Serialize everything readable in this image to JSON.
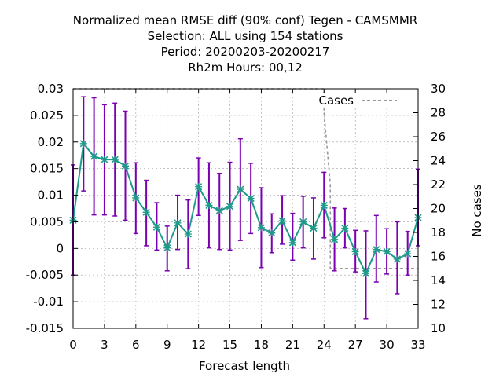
{
  "chart_data": {
    "type": "line",
    "title_lines": [
      "Normalized mean RMSE diff (90% conf) Tegen - CAMSMMR",
      "Selection: ALL using   154 stations",
      "Period: 20200203-20200217",
      "Rh2m   Hours:  00,12"
    ],
    "xlabel": "Forecast length",
    "ylabel": "",
    "y2label": "No cases",
    "xlim": [
      0,
      33
    ],
    "ylim": [
      -0.015,
      0.03
    ],
    "y2lim": [
      10,
      30
    ],
    "x_ticks": [
      0,
      3,
      6,
      9,
      12,
      15,
      18,
      21,
      24,
      27,
      30,
      33
    ],
    "y_ticks": [
      -0.015,
      -0.01,
      -0.005,
      0,
      0.005,
      0.01,
      0.015,
      0.02,
      0.025,
      0.03
    ],
    "y_tick_labels": [
      "-0.015",
      "-0.01",
      "-0.005",
      "0",
      "0.005",
      "0.01",
      "0.015",
      "0.02",
      "0.025",
      "0.03"
    ],
    "y2_ticks": [
      10,
      12,
      14,
      16,
      18,
      20,
      22,
      24,
      26,
      28,
      30
    ],
    "grid": true,
    "legend": {
      "position": "top-right",
      "entries": [
        "Cases"
      ]
    },
    "series": [
      {
        "kind": "errorbar-line",
        "color": "#1e9a8a",
        "errorbar_color": "#7a00b0",
        "x": [
          0,
          1,
          2,
          3,
          4,
          5,
          6,
          7,
          8,
          9,
          10,
          11,
          12,
          13,
          14,
          15,
          16,
          17,
          18,
          19,
          20,
          21,
          22,
          23,
          24,
          25,
          26,
          27,
          28,
          29,
          30,
          31,
          32,
          33
        ],
        "y": [
          0.0053,
          0.0197,
          0.0173,
          0.0167,
          0.0167,
          0.0155,
          0.0095,
          0.0068,
          0.004,
          0.0001,
          0.0048,
          0.0027,
          0.0116,
          0.0081,
          0.0071,
          0.0079,
          0.0111,
          0.0094,
          0.0039,
          0.0029,
          0.0052,
          0.0011,
          0.005,
          0.0038,
          0.0081,
          0.0017,
          0.0038,
          -0.0006,
          -0.0047,
          -0.0002,
          -0.0006,
          -0.002,
          -0.001,
          0.0058
        ],
        "y_low": [
          -0.005,
          0.0108,
          0.0063,
          0.0063,
          0.0061,
          0.0053,
          0.0028,
          0.0005,
          -0.0003,
          -0.0042,
          -0.0002,
          -0.0038,
          0.0062,
          0.0001,
          -0.0002,
          -0.0003,
          0.0015,
          0.0028,
          -0.0036,
          -0.0008,
          0.0008,
          -0.0022,
          0.0001,
          -0.002,
          0.002,
          -0.0042,
          0.0001,
          -0.0044,
          -0.0132,
          -0.0063,
          -0.0048,
          -0.0085,
          -0.005,
          0.0005
        ],
        "y_high": [
          0.0157,
          0.0285,
          0.0283,
          0.027,
          0.0273,
          0.0258,
          0.0161,
          0.0128,
          0.0086,
          0.0042,
          0.01,
          0.0091,
          0.017,
          0.0161,
          0.0141,
          0.0162,
          0.0206,
          0.016,
          0.0114,
          0.0065,
          0.0099,
          0.0066,
          0.0098,
          0.0095,
          0.0143,
          0.0076,
          0.0075,
          0.0034,
          0.0033,
          0.0062,
          0.0037,
          0.005,
          0.0032,
          0.0149
        ]
      },
      {
        "name": "Cases",
        "kind": "step",
        "axis": "y2",
        "color": "#999999",
        "x": [
          0,
          24,
          24,
          24.6,
          24.6,
          33
        ],
        "y": [
          30,
          30,
          28,
          22,
          15,
          15
        ]
      }
    ]
  }
}
